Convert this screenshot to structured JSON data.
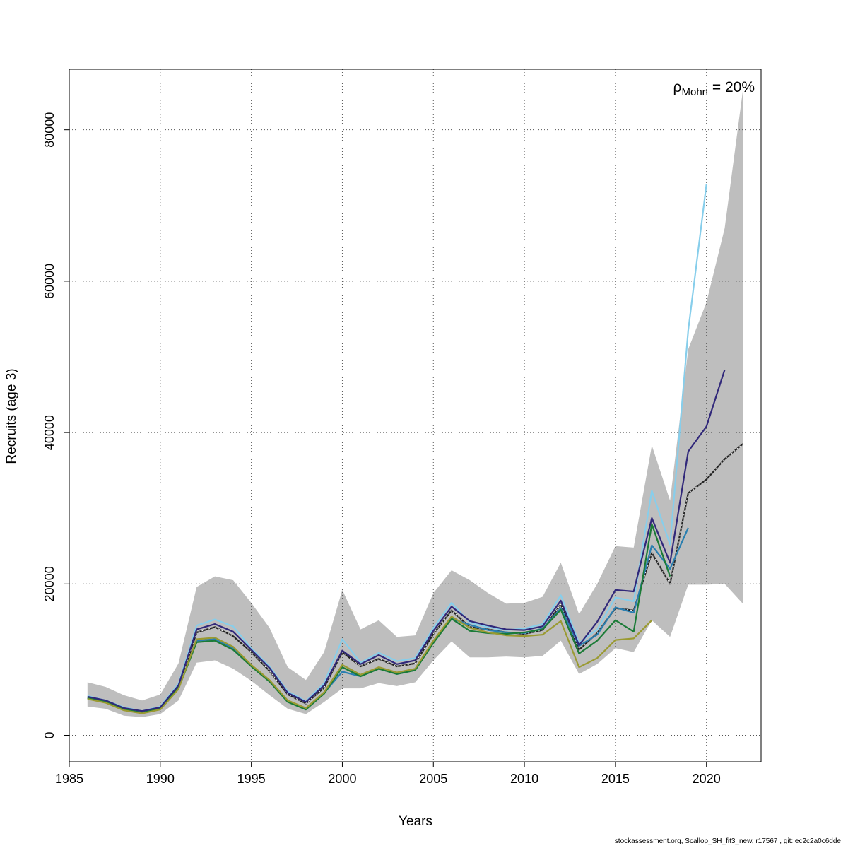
{
  "chart_data": {
    "type": "line",
    "xlabel": "Years",
    "ylabel": "Recruits (age 3)",
    "xlim": [
      1985,
      2023
    ],
    "ylim": [
      -3500,
      88000
    ],
    "x_ticks": [
      1985,
      1990,
      1995,
      2000,
      2005,
      2010,
      2015,
      2020
    ],
    "y_ticks": [
      0,
      20000,
      40000,
      60000,
      80000
    ],
    "grid": true,
    "annotation": {
      "symbol": "ρ",
      "subscript": "Mohn",
      "text": " = 20%"
    },
    "confidence_band": {
      "color": "#bebebe",
      "x": [
        1986,
        1987,
        1988,
        1989,
        1990,
        1991,
        1992,
        1993,
        1994,
        1995,
        1996,
        1997,
        1998,
        1999,
        2000,
        2001,
        2002,
        2003,
        2004,
        2005,
        2006,
        2007,
        2008,
        2009,
        2010,
        2011,
        2012,
        2013,
        2014,
        2015,
        2016,
        2017,
        2018,
        2019,
        2020,
        2021,
        2022
      ],
      "upper": [
        7000,
        6400,
        5300,
        4600,
        5400,
        9500,
        19600,
        21000,
        20500,
        17500,
        14200,
        9000,
        7300,
        11000,
        19200,
        14000,
        15200,
        13000,
        13200,
        18800,
        21800,
        20500,
        18800,
        17400,
        17500,
        18300,
        22800,
        16000,
        20000,
        25000,
        24800,
        38300,
        31000,
        51000,
        57200,
        67000,
        85200
      ],
      "lower": [
        3800,
        3500,
        2600,
        2400,
        2800,
        4600,
        9600,
        9900,
        8800,
        7200,
        5300,
        3500,
        2800,
        4400,
        6200,
        6200,
        6900,
        6500,
        7000,
        9900,
        12400,
        10300,
        10300,
        10400,
        10300,
        10500,
        12500,
        8100,
        9400,
        11500,
        11000,
        15200,
        13000,
        19900,
        19900,
        20000,
        17400
      ]
    },
    "series": [
      {
        "color": "#222222",
        "dashed": true,
        "x": [
          1986,
          1987,
          1988,
          1989,
          1990,
          1991,
          1992,
          1993,
          1994,
          1995,
          1996,
          1997,
          1998,
          1999,
          2000,
          2001,
          2002,
          2003,
          2004,
          2005,
          2006,
          2007,
          2008,
          2009,
          2010,
          2011,
          2012,
          2013,
          2014,
          2015,
          2016,
          2017,
          2018,
          2019,
          2020,
          2021,
          2022
        ],
        "values": [
          5000,
          4400,
          3400,
          3100,
          3600,
          6300,
          13600,
          14300,
          13100,
          11000,
          8500,
          5400,
          4200,
          6300,
          11000,
          9100,
          10100,
          9100,
          9500,
          13400,
          16500,
          14300,
          14000,
          13600,
          13400,
          13900,
          17300,
          11300,
          13500,
          16800,
          16500,
          24100,
          20000,
          32000,
          33800,
          36500,
          38500
        ]
      },
      {
        "color": "#87ceeb",
        "x": [
          1986,
          1987,
          1988,
          1989,
          1990,
          1991,
          1992,
          1993,
          1994,
          1995,
          1996,
          1997,
          1998,
          1999,
          2000,
          2001,
          2002,
          2003,
          2004,
          2005,
          2006,
          2007,
          2008,
          2009,
          2010,
          2011,
          2012,
          2013,
          2014,
          2015,
          2016,
          2017,
          2018,
          2019,
          2020
        ],
        "values": [
          5200,
          4600,
          3700,
          3200,
          3800,
          6800,
          14500,
          15300,
          14400,
          11500,
          9100,
          5800,
          4500,
          6900,
          12700,
          9600,
          10900,
          9800,
          10200,
          14200,
          17500,
          14900,
          14300,
          13900,
          14100,
          14700,
          18500,
          12200,
          14000,
          18200,
          17700,
          32300,
          25200,
          53500,
          72800
        ]
      },
      {
        "color": "#2a7fb0",
        "x": [
          1986,
          1987,
          1988,
          1989,
          1990,
          1991,
          1992,
          1993,
          1994,
          1995,
          1996,
          1997,
          1998,
          1999,
          2000,
          2001,
          2002,
          2003,
          2004,
          2005,
          2006,
          2007,
          2008,
          2009,
          2010,
          2011,
          2012,
          2013,
          2014,
          2015,
          2016,
          2017,
          2018,
          2019
        ],
        "values": [
          4900,
          4400,
          3400,
          3000,
          3500,
          6200,
          12500,
          12700,
          11500,
          9200,
          7200,
          4500,
          3500,
          5600,
          8400,
          7800,
          8800,
          8100,
          8600,
          12300,
          15400,
          14600,
          13900,
          13600,
          13500,
          14100,
          16800,
          11800,
          13300,
          16900,
          16200,
          25100,
          22000,
          27400
        ]
      },
      {
        "color": "#1b7b37",
        "x": [
          1986,
          1987,
          1988,
          1989,
          1990,
          1991,
          1992,
          1993,
          1994,
          1995,
          1996,
          1997,
          1998,
          1999,
          2000,
          2001,
          2002,
          2003,
          2004,
          2005,
          2006,
          2007,
          2008,
          2009,
          2010,
          2011,
          2012,
          2013,
          2014,
          2015,
          2016,
          2017,
          2018
        ],
        "values": [
          4900,
          4400,
          3400,
          3000,
          3500,
          6200,
          12300,
          12500,
          11300,
          9100,
          7100,
          4400,
          3400,
          5500,
          9000,
          7800,
          8800,
          8100,
          8600,
          12200,
          15400,
          13800,
          13500,
          13400,
          13600,
          14000,
          16600,
          10800,
          12500,
          15200,
          13700,
          27900,
          21000
        ]
      },
      {
        "color": "#9a9a32",
        "x": [
          1986,
          1987,
          1988,
          1989,
          1990,
          1991,
          1992,
          1993,
          1994,
          1995,
          1996,
          1997,
          1998,
          1999,
          2000,
          2001,
          2002,
          2003,
          2004,
          2005,
          2006,
          2007,
          2008,
          2009,
          2010,
          2011,
          2012,
          2013,
          2014,
          2015,
          2016,
          2017
        ],
        "values": [
          4800,
          4300,
          3300,
          2900,
          3400,
          6100,
          12700,
          12900,
          11700,
          9300,
          7300,
          4600,
          3600,
          5700,
          9300,
          8000,
          9000,
          8300,
          8800,
          12500,
          15700,
          14200,
          13600,
          13200,
          13100,
          13300,
          15100,
          9000,
          10200,
          12600,
          12800,
          15200
        ]
      },
      {
        "color": "#31287a",
        "x": [
          1986,
          1987,
          1988,
          1989,
          1990,
          1991,
          1992,
          1993,
          1994,
          1995,
          1996,
          1997,
          1998,
          1999,
          2000,
          2001,
          2002,
          2003,
          2004,
          2005,
          2006,
          2007,
          2008,
          2009,
          2010,
          2011,
          2012,
          2013,
          2014,
          2015,
          2016,
          2017,
          2018,
          2019,
          2020,
          2021
        ],
        "values": [
          5100,
          4600,
          3600,
          3200,
          3700,
          6600,
          14000,
          14700,
          13700,
          11300,
          8900,
          5600,
          4400,
          6600,
          11200,
          9400,
          10600,
          9400,
          9900,
          13800,
          17000,
          15100,
          14500,
          14000,
          13900,
          14400,
          17800,
          11900,
          15000,
          19200,
          19000,
          28700,
          22800,
          37500,
          40800,
          48300
        ]
      }
    ]
  },
  "footer": "stockassessment.org, Scallop_SH_fit3_new, r17567 , git: ec2c2a0c6dde"
}
